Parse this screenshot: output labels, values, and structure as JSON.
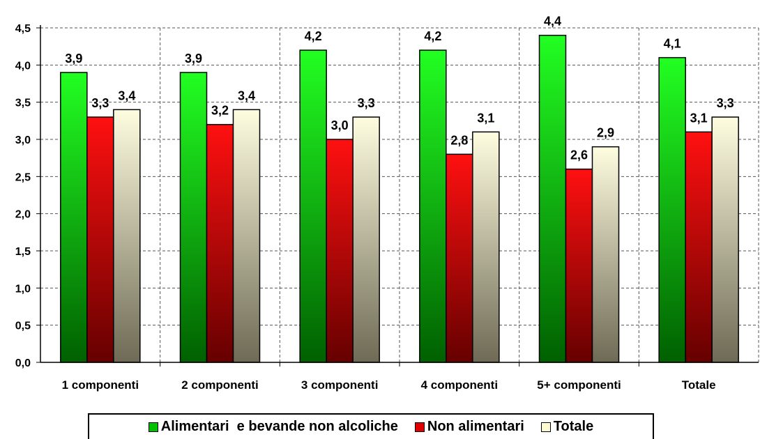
{
  "chart_data": {
    "type": "bar",
    "categories": [
      "1 componenti",
      "2 componenti",
      "3 componenti",
      "4 componenti",
      "5+ componenti",
      "Totale"
    ],
    "series": [
      {
        "name": "Alimentari  e bevande non alcoliche",
        "values": [
          3.9,
          3.9,
          4.2,
          4.2,
          4.4,
          4.1
        ],
        "labels": [
          "3,9",
          "3,9",
          "4,2",
          "4,2",
          "4,4",
          "4,1"
        ],
        "color": "#00c000"
      },
      {
        "name": "Non alimentari",
        "values": [
          3.3,
          3.2,
          3.0,
          2.8,
          2.6,
          3.1
        ],
        "labels": [
          "3,3",
          "3,2",
          "3,0",
          "2,8",
          "2,6",
          "3,1"
        ],
        "color": "#e00000"
      },
      {
        "name": "Totale",
        "values": [
          3.4,
          3.4,
          3.3,
          3.1,
          2.9,
          3.3
        ],
        "labels": [
          "3,4",
          "3,4",
          "3,3",
          "3,1",
          "2,9",
          "3,3"
        ],
        "color": "#fffbd0"
      }
    ],
    "ylim": [
      0,
      4.5
    ],
    "yticks": [
      "0,0",
      "0,5",
      "1,0",
      "1,5",
      "2,0",
      "2,5",
      "3,0",
      "3,5",
      "4,0",
      "4,5"
    ],
    "grid": true,
    "legend": "bottom"
  }
}
